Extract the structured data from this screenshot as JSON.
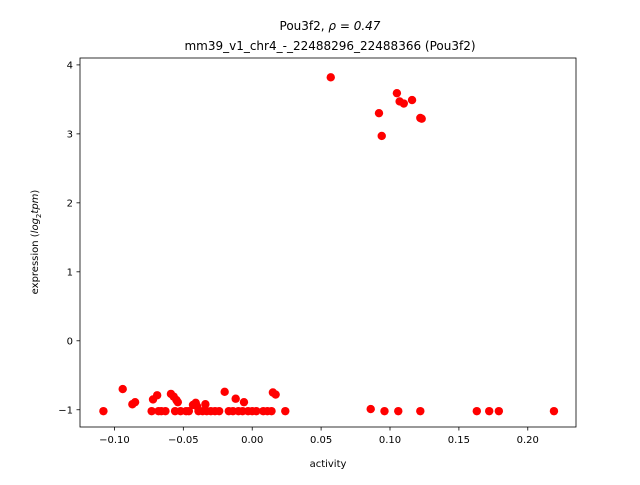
{
  "chart_data": {
    "type": "scatter",
    "title_line1_prefix": "Pou3f2, ",
    "title_line1_rho": "ρ = 0.47",
    "title_line2": "mm39_v1_chr4_-_22488296_22488366 (Pou3f2)",
    "xlabel": "activity",
    "ylabel_prefix": "expression (",
    "ylabel_log": "log",
    "ylabel_sub": "2",
    "ylabel_tpm": "tpm",
    "ylabel_suffix": ")",
    "xlim": [
      -0.125,
      0.235
    ],
    "ylim": [
      -1.25,
      4.1
    ],
    "xticks": [
      {
        "value": -0.1,
        "label": "−0.10"
      },
      {
        "value": -0.05,
        "label": "−0.05"
      },
      {
        "value": 0.0,
        "label": "0.00"
      },
      {
        "value": 0.05,
        "label": "0.05"
      },
      {
        "value": 0.1,
        "label": "0.10"
      },
      {
        "value": 0.15,
        "label": "0.15"
      },
      {
        "value": 0.2,
        "label": "0.20"
      }
    ],
    "yticks": [
      {
        "value": -1,
        "label": "−1"
      },
      {
        "value": 0,
        "label": "0"
      },
      {
        "value": 1,
        "label": "1"
      },
      {
        "value": 2,
        "label": "2"
      },
      {
        "value": 3,
        "label": "3"
      },
      {
        "value": 4,
        "label": "4"
      }
    ],
    "marker_color": "#ff0000",
    "grid": false,
    "points": [
      [
        0.057,
        3.82
      ],
      [
        0.105,
        3.59
      ],
      [
        0.107,
        3.47
      ],
      [
        0.11,
        3.44
      ],
      [
        0.116,
        3.49
      ],
      [
        0.092,
        3.3
      ],
      [
        0.122,
        3.23
      ],
      [
        0.123,
        3.22
      ],
      [
        0.094,
        2.97
      ],
      [
        -0.094,
        -0.7
      ],
      [
        -0.087,
        -0.92
      ],
      [
        -0.085,
        -0.89
      ],
      [
        -0.072,
        -0.85
      ],
      [
        -0.069,
        -0.79
      ],
      [
        -0.059,
        -0.77
      ],
      [
        -0.057,
        -0.81
      ],
      [
        -0.055,
        -0.86
      ],
      [
        -0.054,
        -0.89
      ],
      [
        -0.043,
        -0.93
      ],
      [
        -0.041,
        -0.9
      ],
      [
        -0.04,
        -0.95
      ],
      [
        -0.034,
        -0.92
      ],
      [
        -0.02,
        -0.74
      ],
      [
        -0.012,
        -0.84
      ],
      [
        -0.006,
        -0.89
      ],
      [
        0.015,
        -0.75
      ],
      [
        0.017,
        -0.78
      ],
      [
        0.086,
        -0.99
      ],
      [
        -0.108,
        -1.02
      ],
      [
        -0.073,
        -1.02
      ],
      [
        -0.068,
        -1.02
      ],
      [
        -0.066,
        -1.02
      ],
      [
        -0.063,
        -1.02
      ],
      [
        -0.056,
        -1.02
      ],
      [
        -0.052,
        -1.02
      ],
      [
        -0.048,
        -1.02
      ],
      [
        -0.046,
        -1.02
      ],
      [
        -0.039,
        -1.02
      ],
      [
        -0.036,
        -1.02
      ],
      [
        -0.033,
        -1.02
      ],
      [
        -0.03,
        -1.02
      ],
      [
        -0.027,
        -1.02
      ],
      [
        -0.024,
        -1.02
      ],
      [
        -0.017,
        -1.02
      ],
      [
        -0.014,
        -1.02
      ],
      [
        -0.01,
        -1.02
      ],
      [
        -0.007,
        -1.02
      ],
      [
        -0.003,
        -1.02
      ],
      [
        0.0,
        -1.02
      ],
      [
        0.003,
        -1.02
      ],
      [
        0.008,
        -1.02
      ],
      [
        0.011,
        -1.02
      ],
      [
        0.014,
        -1.02
      ],
      [
        0.024,
        -1.02
      ],
      [
        0.096,
        -1.02
      ],
      [
        0.106,
        -1.02
      ],
      [
        0.122,
        -1.02
      ],
      [
        0.163,
        -1.02
      ],
      [
        0.172,
        -1.02
      ],
      [
        0.179,
        -1.02
      ],
      [
        0.219,
        -1.02
      ]
    ]
  }
}
